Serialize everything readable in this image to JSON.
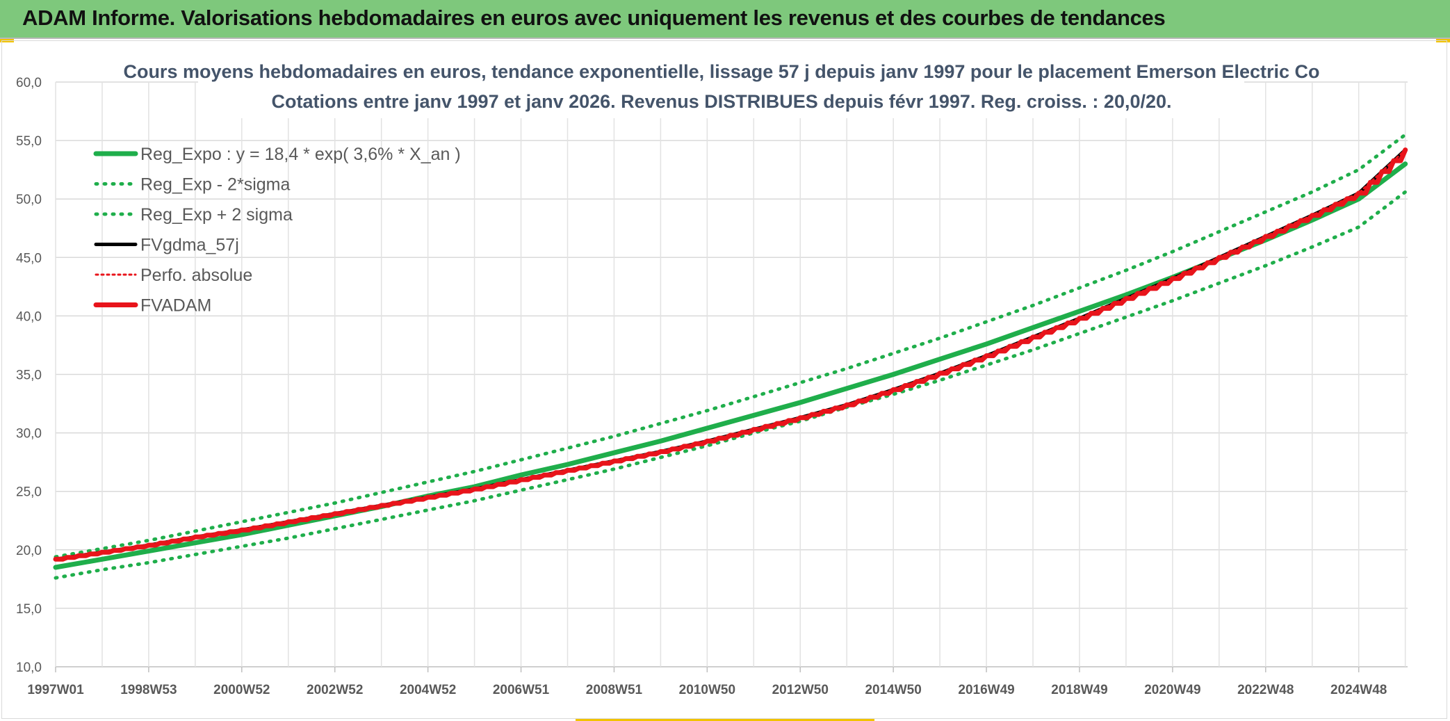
{
  "banner": {
    "title": "ADAM Informe. Valorisations hebdomadaires en euros avec uniquement les revenus et des courbes de tendances"
  },
  "colors": {
    "banner_bg": "#7ec87c",
    "accent_yellow": "#f2c300",
    "green": "#1fae4b",
    "red": "#e8141b",
    "black": "#000000"
  },
  "chart_data": {
    "type": "line",
    "title": "Cours moyens hebdomadaires en euros, tendance exponentielle, lissage 57 j depuis janv 1997 pour le placement Emerson Electric Co",
    "subtitle": "Cotations entre janv 1997 et janv 2026. Revenus DISTRIBUES depuis févr 1997. Reg. croiss. : 20,0/20.",
    "xlabel": "",
    "ylabel": "",
    "ylim": [
      10,
      60
    ],
    "y_ticks": [
      "10,0",
      "15,0",
      "20,0",
      "25,0",
      "30,0",
      "35,0",
      "40,0",
      "45,0",
      "50,0",
      "55,0",
      "60,0"
    ],
    "xlim": [
      1997.0,
      2026.05
    ],
    "x_ticks": [
      {
        "label": "1997W01",
        "x": 1997.0
      },
      {
        "label": "1998W53",
        "x": 1999.0
      },
      {
        "label": "2000W52",
        "x": 2001.0
      },
      {
        "label": "2002W52",
        "x": 2003.0
      },
      {
        "label": "2004W52",
        "x": 2005.0
      },
      {
        "label": "2006W51",
        "x": 2007.0
      },
      {
        "label": "2008W51",
        "x": 2009.0
      },
      {
        "label": "2010W50",
        "x": 2011.0
      },
      {
        "label": "2012W50",
        "x": 2013.0
      },
      {
        "label": "2014W50",
        "x": 2015.0
      },
      {
        "label": "2016W49",
        "x": 2017.0
      },
      {
        "label": "2018W49",
        "x": 2019.0
      },
      {
        "label": "2020W49",
        "x": 2021.0
      },
      {
        "label": "2022W48",
        "x": 2023.0
      },
      {
        "label": "2024W48",
        "x": 2025.0
      }
    ],
    "x": [
      1997,
      1998,
      1999,
      2000,
      2001,
      2002,
      2003,
      2004,
      2005,
      2006,
      2007,
      2008,
      2009,
      2010,
      2011,
      2012,
      2013,
      2014,
      2015,
      2016,
      2017,
      2018,
      2019,
      2020,
      2021,
      2022,
      2023,
      2024,
      2025,
      2026
    ],
    "grid": true,
    "legend_position": "top-left",
    "series": [
      {
        "name": "Reg_Expo : y = 18,4 * exp( 3,6% *  X_an )",
        "color": "#1fae4b",
        "style": "solid",
        "width": 7,
        "values": [
          18.5,
          19.2,
          19.9,
          20.6,
          21.3,
          22.1,
          22.9,
          23.7,
          24.6,
          25.4,
          26.4,
          27.3,
          28.3,
          29.3,
          30.4,
          31.5,
          32.6,
          33.8,
          35.0,
          36.3,
          37.6,
          39.0,
          40.4,
          41.8,
          43.3,
          44.9,
          46.5,
          48.2,
          50.0,
          53.0
        ]
      },
      {
        "name": "Reg_Exp - 2*sigma",
        "color": "#1fae4b",
        "style": "dotted",
        "width": 5,
        "values": [
          17.6,
          18.3,
          18.9,
          19.6,
          20.3,
          21.0,
          21.8,
          22.6,
          23.4,
          24.2,
          25.1,
          26.0,
          26.9,
          27.9,
          28.9,
          30.0,
          31.0,
          32.2,
          33.3,
          34.5,
          35.8,
          37.1,
          38.5,
          39.9,
          41.3,
          42.8,
          44.3,
          45.9,
          47.6,
          50.6
        ]
      },
      {
        "name": "Reg_Exp + 2 sigma",
        "color": "#1fae4b",
        "style": "dotted",
        "width": 5,
        "values": [
          19.4,
          20.1,
          20.8,
          21.6,
          22.4,
          23.2,
          24.0,
          24.9,
          25.8,
          26.7,
          27.7,
          28.7,
          29.7,
          30.8,
          31.9,
          33.1,
          34.3,
          35.5,
          36.8,
          38.1,
          39.5,
          40.9,
          42.4,
          43.9,
          45.5,
          47.2,
          48.9,
          50.6,
          52.5,
          55.5
        ]
      },
      {
        "name": "FVgdma_57j",
        "color": "#000000",
        "style": "solid",
        "width": 5,
        "values": [
          19.2,
          19.8,
          20.4,
          21.1,
          21.7,
          22.4,
          23.1,
          23.8,
          24.5,
          25.2,
          26.0,
          26.8,
          27.6,
          28.4,
          29.3,
          30.3,
          31.3,
          32.4,
          33.7,
          35.1,
          36.6,
          38.2,
          39.8,
          41.5,
          43.2,
          45.0,
          46.8,
          48.6,
          50.5,
          54.2
        ]
      },
      {
        "name": "Perfo. absolue",
        "color": "#e8141b",
        "style": "dotted",
        "width": 3,
        "values": [
          19.2,
          19.8,
          20.4,
          21.1,
          21.7,
          22.4,
          23.1,
          23.8,
          24.5,
          25.2,
          26.0,
          26.8,
          27.6,
          28.4,
          29.3,
          30.3,
          31.3,
          32.4,
          33.7,
          35.1,
          36.6,
          38.2,
          39.8,
          41.5,
          43.2,
          45.0,
          46.8,
          48.6,
          50.5,
          54.2
        ]
      },
      {
        "name": "FVADAM",
        "color": "#e8141b",
        "style": "solid",
        "width": 7,
        "values": [
          19.2,
          19.8,
          20.4,
          21.1,
          21.7,
          22.4,
          23.1,
          23.8,
          24.5,
          25.2,
          26.0,
          26.8,
          27.6,
          28.4,
          29.3,
          30.3,
          31.3,
          32.4,
          33.7,
          35.1,
          36.6,
          38.2,
          39.8,
          41.5,
          43.2,
          45.0,
          46.8,
          48.6,
          50.5,
          54.2
        ]
      }
    ]
  }
}
